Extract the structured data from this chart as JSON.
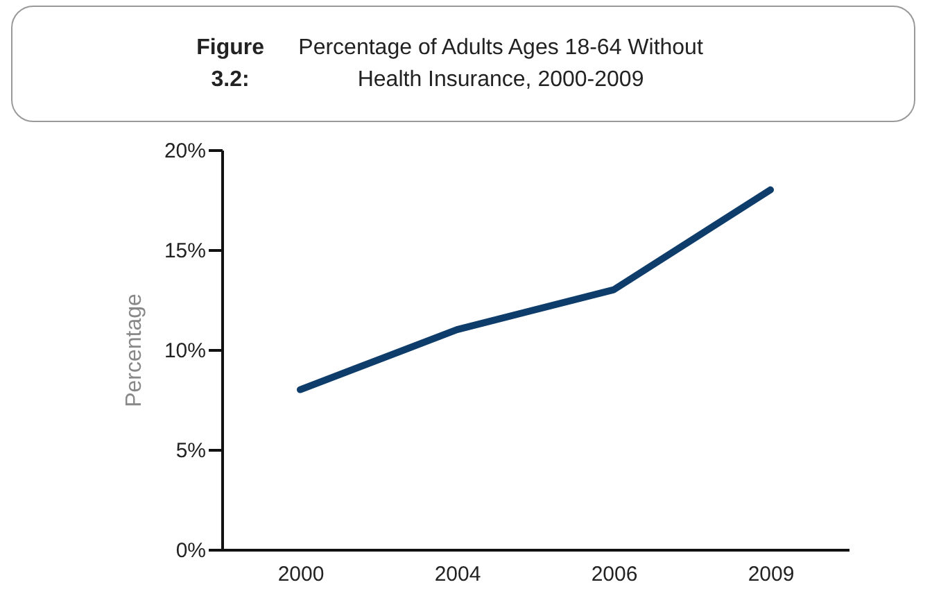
{
  "chart_data": {
    "type": "line",
    "title": "Figure 3.2: Percentage of Adults Ages 18-64 Without Health Insurance, 2000-2009",
    "ylabel": "Percentage",
    "categories": [
      "2000",
      "2004",
      "2006",
      "2009"
    ],
    "series": [
      {
        "color": "#0e3d6b",
        "values": [
          8,
          11,
          13,
          18
        ]
      }
    ],
    "ylim": [
      0,
      20
    ],
    "yticks": [
      {
        "value": 0,
        "label": "0%"
      },
      {
        "value": 5,
        "label": "5%"
      },
      {
        "value": 10,
        "label": "10%"
      },
      {
        "value": 15,
        "label": "15%"
      },
      {
        "value": 20,
        "label": "20%"
      }
    ],
    "grid": false,
    "marker": "none",
    "line_style": "solid"
  }
}
